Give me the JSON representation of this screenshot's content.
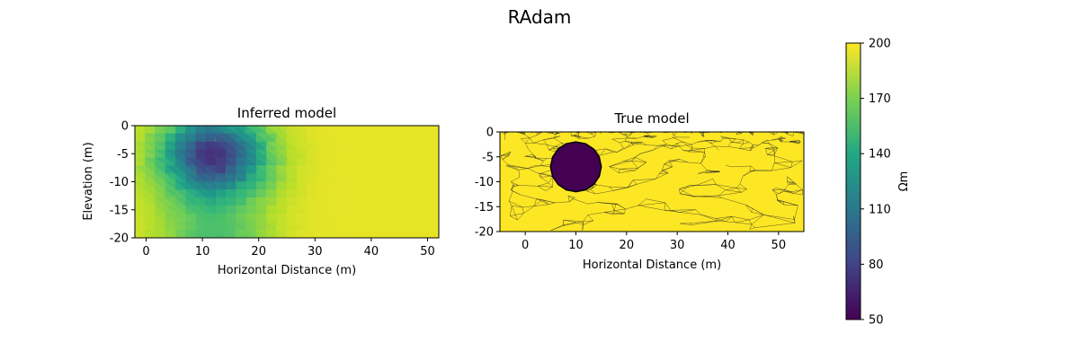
{
  "title": "RAdam",
  "panels": [
    {
      "title": "Inferred model",
      "xlabel": "Horizontal Distance (m)",
      "ylabel": "Elevation (m)",
      "xticks": [
        "0",
        "10",
        "20",
        "30",
        "40",
        "50"
      ],
      "yticks": [
        "0",
        "-5",
        "-10",
        "-15",
        "-20"
      ]
    },
    {
      "title": "True model",
      "xlabel": "Horizontal Distance (m)",
      "ylabel": "",
      "xticks": [
        "0",
        "10",
        "20",
        "30",
        "40",
        "50"
      ],
      "yticks": [
        "0",
        "-5",
        "-10",
        "-15",
        "-20"
      ]
    }
  ],
  "colorbar": {
    "label": "Ωm",
    "ticks": [
      "50",
      "80",
      "110",
      "140",
      "170",
      "200"
    ]
  },
  "chart_data": [
    {
      "type": "heatmap",
      "title": "Inferred model",
      "xlabel": "Horizontal Distance (m)",
      "ylabel": "Elevation (m)",
      "xlim": [
        -2,
        52
      ],
      "ylim": [
        -20,
        0
      ],
      "colormap": "viridis",
      "clim": [
        50,
        200
      ],
      "background_value": 195,
      "anomaly": {
        "center_x": 12,
        "center_y": -5,
        "min_value": 80,
        "extent_x": [
          2,
          24
        ],
        "extent_y": [
          -20,
          0
        ]
      }
    },
    {
      "type": "heatmap",
      "title": "True model",
      "xlabel": "Horizontal Distance (m)",
      "ylabel": "",
      "xlim": [
        -5,
        55
      ],
      "ylim": [
        -20,
        0
      ],
      "colormap": "viridis",
      "clim": [
        50,
        200
      ],
      "background_value": 200,
      "anomaly": {
        "shape": "circle",
        "center_x": 10,
        "center_y": -7,
        "radius": 5,
        "value": 50
      },
      "mesh_lines": true
    }
  ],
  "colors": {
    "viridis_low": "#440154",
    "viridis_mid": "#21918c",
    "viridis_high": "#fde725",
    "mesh": "#222222"
  }
}
